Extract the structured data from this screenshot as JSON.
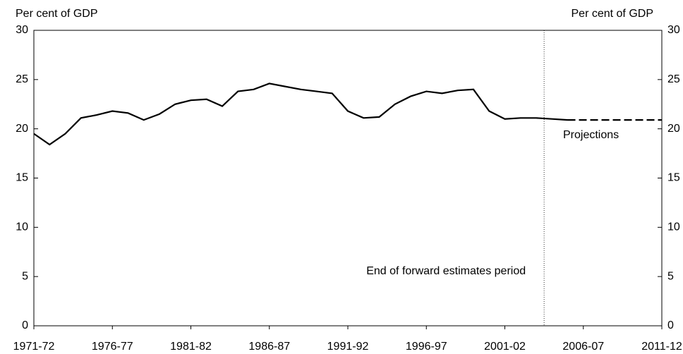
{
  "chart_data": {
    "type": "line",
    "ylabel": "Per cent of GDP",
    "y2label": "Per cent of GDP",
    "categories": [
      "1971-72",
      null,
      null,
      null,
      null,
      "1976-77",
      null,
      null,
      null,
      null,
      "1981-82",
      null,
      null,
      null,
      null,
      "1986-87",
      null,
      null,
      null,
      null,
      "1991-92",
      null,
      null,
      null,
      null,
      "1996-97",
      null,
      null,
      null,
      null,
      "2001-02",
      null,
      null,
      null,
      null,
      "2006-07",
      null,
      null,
      null,
      null,
      "2011-12"
    ],
    "series": [
      {
        "color": "#000000",
        "dashed": false,
        "values": [
          19.5,
          18.4,
          19.5,
          21.1,
          21.4,
          21.8,
          21.6,
          20.9,
          21.5,
          22.5,
          22.9,
          23.0,
          22.3,
          23.8,
          24.0,
          24.6,
          24.3,
          24.0,
          23.8,
          23.6,
          21.8,
          21.1,
          21.2,
          22.5,
          23.3,
          23.8,
          23.6,
          23.9,
          24.0,
          21.8,
          21.0,
          21.1,
          21.1,
          21.0,
          20.9,
          null,
          null,
          null,
          null,
          null,
          null
        ]
      },
      {
        "name": "Projections",
        "color": "#000000",
        "dashed": true,
        "values": [
          null,
          null,
          null,
          null,
          null,
          null,
          null,
          null,
          null,
          null,
          null,
          null,
          null,
          null,
          null,
          null,
          null,
          null,
          null,
          null,
          null,
          null,
          null,
          null,
          null,
          null,
          null,
          null,
          null,
          null,
          null,
          null,
          null,
          null,
          20.9,
          20.9,
          20.9,
          20.9,
          20.9,
          20.9,
          20.9
        ]
      }
    ],
    "annotation": {
      "text": "End of forward estimates period",
      "x": 32.5
    },
    "ylim": [
      0,
      30
    ],
    "yticks": [
      0,
      5,
      10,
      15,
      20,
      25,
      30
    ],
    "y2lim": [
      0,
      30
    ],
    "y2ticks": [
      0,
      5,
      10,
      15,
      20,
      25,
      30
    ]
  }
}
